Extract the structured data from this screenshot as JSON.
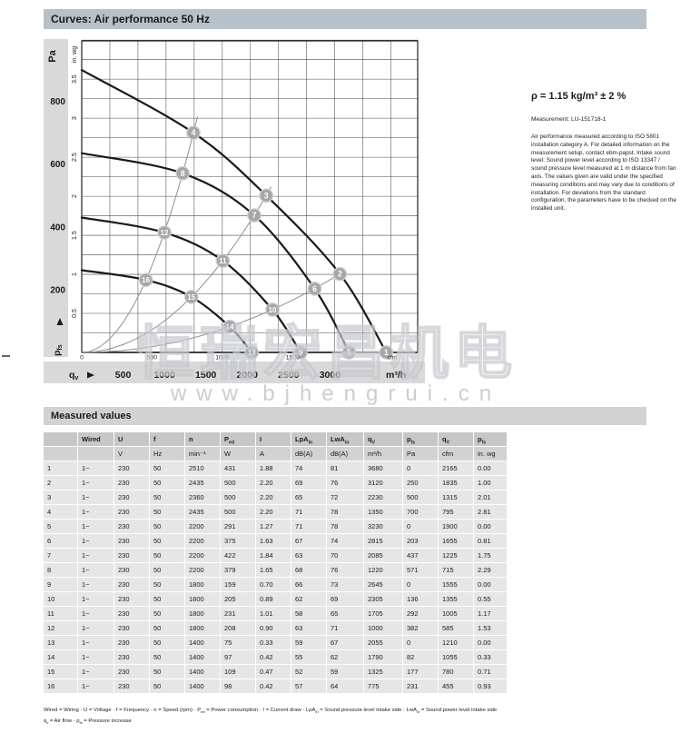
{
  "title_bar": "Curves: Air performance 50 Hz",
  "side_note": {
    "density": "ρ = 1.15 kg/m³ ± 2 %",
    "measurement": "Measurement: LU-151718-1",
    "description": "Air performance measured according to ISO 5801 installation category A. For detailed information on the measurement setup, contact ebm-papst. Intake sound level: Sound power level according to ISO 13347 / sound pressure level measured at 1 m distance from fan axis. The values given are valid under the specified measuring conditions and may vary due to conditions of installation. For deviations from the standard configuration, the parameters have to be checked on the installed unit."
  },
  "watermark": {
    "cn": "恒瑞宏昌机电",
    "url": "www.bjhengrui.cn"
  },
  "chart_data": {
    "type": "line",
    "title": "Curves: Air performance 50 Hz",
    "x_axis": {
      "label": "qv",
      "primary_unit": "m³/h",
      "primary_ticks": [
        500,
        1000,
        1500,
        2000,
        2500,
        3000
      ],
      "secondary_unit": "cfm",
      "secondary_ticks": [
        0,
        500,
        1000,
        1500
      ],
      "range_m3h": [
        0,
        4060
      ]
    },
    "y_axis": {
      "label": "pfs",
      "primary_unit": "Pa",
      "primary_ticks": [
        200,
        400,
        600,
        800
      ],
      "secondary_unit": "in. wg",
      "secondary_ticks": [
        0.5,
        1,
        1.5,
        2,
        2.5,
        3,
        3.5
      ],
      "range_pa": [
        0,
        993
      ]
    },
    "grid": {
      "x_step_cfm": 200,
      "y_step_inwg": 0.25,
      "cfm_per_m3h": 0.5886
    },
    "fan_curves": [
      {
        "points": [
          {
            "q": 0,
            "p": 900
          },
          {
            "q": 1350,
            "p": 700,
            "marker": 4
          },
          {
            "q": 2230,
            "p": 500,
            "marker": 3
          },
          {
            "q": 3120,
            "p": 250,
            "marker": 2
          },
          {
            "q": 3680,
            "p": 0,
            "marker": 1
          }
        ]
      },
      {
        "points": [
          {
            "q": 0,
            "p": 635
          },
          {
            "q": 1220,
            "p": 571,
            "marker": 8
          },
          {
            "q": 2085,
            "p": 437,
            "marker": 7
          },
          {
            "q": 2815,
            "p": 203,
            "marker": 6
          },
          {
            "q": 3230,
            "p": 0,
            "marker": 5
          }
        ]
      },
      {
        "points": [
          {
            "q": 0,
            "p": 430
          },
          {
            "q": 1000,
            "p": 382,
            "marker": 12
          },
          {
            "q": 1705,
            "p": 292,
            "marker": 11
          },
          {
            "q": 2305,
            "p": 136,
            "marker": 10
          },
          {
            "q": 2645,
            "p": 0,
            "marker": 9
          }
        ]
      },
      {
        "points": [
          {
            "q": 0,
            "p": 262
          },
          {
            "q": 775,
            "p": 231,
            "marker": 16
          },
          {
            "q": 1325,
            "p": 177,
            "marker": 15
          },
          {
            "q": 1790,
            "p": 82,
            "marker": 14
          },
          {
            "q": 2055,
            "p": 0,
            "marker": 13
          }
        ]
      }
    ],
    "system_curves": [
      {
        "k": 0.000384,
        "q_end": 1400
      },
      {
        "k": 0.0001006,
        "q_end": 2290
      },
      {
        "k": 2.57e-05,
        "q_end": 3180
      }
    ]
  },
  "table": {
    "title": "Measured values",
    "headers": [
      [
        {
          "t": ""
        }
      ],
      [
        {
          "t": "Wired"
        }
      ],
      [
        {
          "t": "U"
        }
      ],
      [
        {
          "t": "f"
        }
      ],
      [
        {
          "t": "n"
        }
      ],
      [
        {
          "t": "P"
        },
        {
          "sub": "ed"
        }
      ],
      [
        {
          "t": "I"
        }
      ],
      [
        {
          "t": "LpA"
        },
        {
          "sub": "in"
        }
      ],
      [
        {
          "t": "LwA"
        },
        {
          "sub": "in"
        }
      ],
      [
        {
          "t": "q"
        },
        {
          "sub": "V"
        }
      ],
      [
        {
          "t": "p"
        },
        {
          "sub": "fs"
        }
      ],
      [
        {
          "t": "q"
        },
        {
          "sub": "V"
        }
      ],
      [
        {
          "t": "p"
        },
        {
          "sub": "fs"
        }
      ]
    ],
    "units": [
      "",
      "",
      "V",
      "Hz",
      "min⁻¹",
      "W",
      "A",
      "dB(A)",
      "dB(A)",
      "m³/h",
      "Pa",
      "cfm",
      "in. wg"
    ],
    "rows": [
      [
        "1",
        "1~",
        "230",
        "50",
        "2510",
        "431",
        "1.88",
        "74",
        "81",
        "3680",
        "0",
        "2165",
        "0.00"
      ],
      [
        "2",
        "1~",
        "230",
        "50",
        "2435",
        "500",
        "2.20",
        "69",
        "76",
        "3120",
        "250",
        "1835",
        "1.00"
      ],
      [
        "3",
        "1~",
        "230",
        "50",
        "2360",
        "500",
        "2.20",
        "65",
        "72",
        "2230",
        "500",
        "1315",
        "2.01"
      ],
      [
        "4",
        "1~",
        "230",
        "50",
        "2435",
        "500",
        "2.20",
        "71",
        "78",
        "1350",
        "700",
        "795",
        "2.81"
      ],
      [
        "5",
        "1~",
        "230",
        "50",
        "2200",
        "291",
        "1.27",
        "71",
        "78",
        "3230",
        "0",
        "1900",
        "0.00"
      ],
      [
        "6",
        "1~",
        "230",
        "50",
        "2200",
        "375",
        "1.63",
        "67",
        "74",
        "2815",
        "203",
        "1655",
        "0.81"
      ],
      [
        "7",
        "1~",
        "230",
        "50",
        "2200",
        "422",
        "1.84",
        "63",
        "70",
        "2085",
        "437",
        "1225",
        "1.75"
      ],
      [
        "8",
        "1~",
        "230",
        "50",
        "2200",
        "379",
        "1.65",
        "68",
        "76",
        "1220",
        "571",
        "715",
        "2.29"
      ],
      [
        "9",
        "1~",
        "230",
        "50",
        "1800",
        "159",
        "0.70",
        "66",
        "73",
        "2645",
        "0",
        "1555",
        "0.00"
      ],
      [
        "10",
        "1~",
        "230",
        "50",
        "1800",
        "205",
        "0.89",
        "62",
        "69",
        "2305",
        "136",
        "1355",
        "0.55"
      ],
      [
        "11",
        "1~",
        "230",
        "50",
        "1800",
        "231",
        "1.01",
        "58",
        "65",
        "1705",
        "292",
        "1005",
        "1.17"
      ],
      [
        "12",
        "1~",
        "230",
        "50",
        "1800",
        "208",
        "0.90",
        "63",
        "71",
        "1000",
        "382",
        "585",
        "1.53"
      ],
      [
        "13",
        "1~",
        "230",
        "50",
        "1400",
        "75",
        "0.33",
        "59",
        "67",
        "2055",
        "0",
        "1210",
        "0.00"
      ],
      [
        "14",
        "1~",
        "230",
        "50",
        "1400",
        "97",
        "0.42",
        "55",
        "62",
        "1790",
        "82",
        "1055",
        "0.33"
      ],
      [
        "15",
        "1~",
        "230",
        "50",
        "1400",
        "109",
        "0.47",
        "52",
        "59",
        "1325",
        "177",
        "780",
        "0.71"
      ],
      [
        "16",
        "1~",
        "230",
        "50",
        "1400",
        "98",
        "0.42",
        "57",
        "64",
        "775",
        "231",
        "455",
        "0.93"
      ]
    ],
    "footnotes": [
      [
        {
          "t": "Wired = Wiring · U = Voltage · f = Frequency · n = Speed (rpm) · P"
        },
        {
          "sub": "ed"
        },
        {
          "t": " = Power consumption · I = Current draw · LpA"
        },
        {
          "sub": "in"
        },
        {
          "t": " = Sound pressure level intake side · LwA"
        },
        {
          "sub": "in"
        },
        {
          "t": " = Sound power level intake side"
        }
      ],
      [
        {
          "t": "q"
        },
        {
          "sub": "v"
        },
        {
          "t": " = Air flow · p"
        },
        {
          "sub": "fs"
        },
        {
          "t": " = Pressure increase"
        }
      ]
    ]
  }
}
